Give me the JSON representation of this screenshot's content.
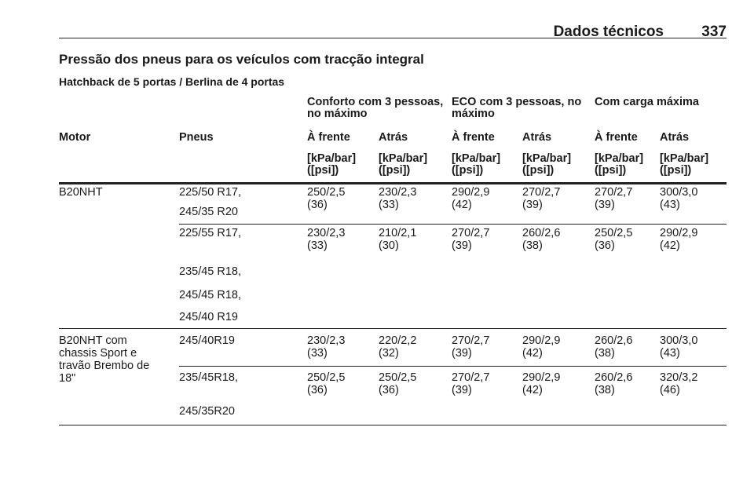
{
  "header": {
    "section": "Dados técnicos",
    "page": "337"
  },
  "title": "Pressão dos pneus para os veículos com tracção integral",
  "subtitle": "Hatchback de 5 portas / Berlina de 4 portas",
  "table": {
    "groups": [
      [
        "Conforto com 3 pessoas,",
        "no máximo"
      ],
      [
        "ECO com 3 pessoas, no",
        "máximo"
      ],
      [
        "Com carga máxima"
      ]
    ],
    "columns": [
      "Motor",
      "Pneus",
      "À frente",
      "Atrás",
      "À frente",
      "Atrás",
      "À frente",
      "Atrás"
    ],
    "units": [
      [
        "[kPa/bar]",
        "([psi])"
      ],
      [
        "[kPa/bar]",
        "([psi])"
      ],
      [
        "[kPa/bar]",
        "([psi])"
      ],
      [
        "[kPa/bar]",
        "([psi])"
      ],
      [
        "[kPa/bar]",
        "([psi])"
      ],
      [
        "[kPa/bar]",
        "([psi])"
      ]
    ],
    "rows": [
      {
        "motor": [
          "B20NHT"
        ],
        "tyres": [
          "225/50 R17,",
          "245/35 R20"
        ],
        "values": [
          [
            "250/2,5",
            "(36)"
          ],
          [
            "230/2,3",
            "(33)"
          ],
          [
            "290/2,9",
            "(42)"
          ],
          [
            "270/2,7",
            "(39)"
          ],
          [
            "270/2,7",
            "(39)"
          ],
          [
            "300/3,0",
            "(43)"
          ]
        ]
      },
      {
        "tyres": [
          "225/55 R17,",
          "235/45 R18,",
          "245/45 R18,",
          "245/40 R19"
        ],
        "values": [
          [
            "230/2,3",
            "(33)"
          ],
          [
            "210/2,1",
            "(30)"
          ],
          [
            "270/2,7",
            "(39)"
          ],
          [
            "260/2,6",
            "(38)"
          ],
          [
            "250/2,5",
            "(36)"
          ],
          [
            "290/2,9",
            "(42)"
          ]
        ]
      },
      {
        "motor": [
          "B20NHT com",
          "chassis Sport e",
          "travão Brembo de",
          "18\""
        ],
        "tyres": [
          "245/40R19"
        ],
        "values": [
          [
            "230/2,3",
            "(33)"
          ],
          [
            "220/2,2",
            "(32)"
          ],
          [
            "270/2,7",
            "(39)"
          ],
          [
            "290/2,9",
            "(42)"
          ],
          [
            "260/2,6",
            "(38)"
          ],
          [
            "300/3,0",
            "(43)"
          ]
        ]
      },
      {
        "tyres": [
          "235/45R18,",
          "245/35R20"
        ],
        "values": [
          [
            "250/2,5",
            "(36)"
          ],
          [
            "250/2,5",
            "(36)"
          ],
          [
            "270/2,7",
            "(39)"
          ],
          [
            "290/2,9",
            "(42)"
          ],
          [
            "260/2,6",
            "(38)"
          ],
          [
            "320/3,2",
            "(46)"
          ]
        ]
      }
    ]
  }
}
